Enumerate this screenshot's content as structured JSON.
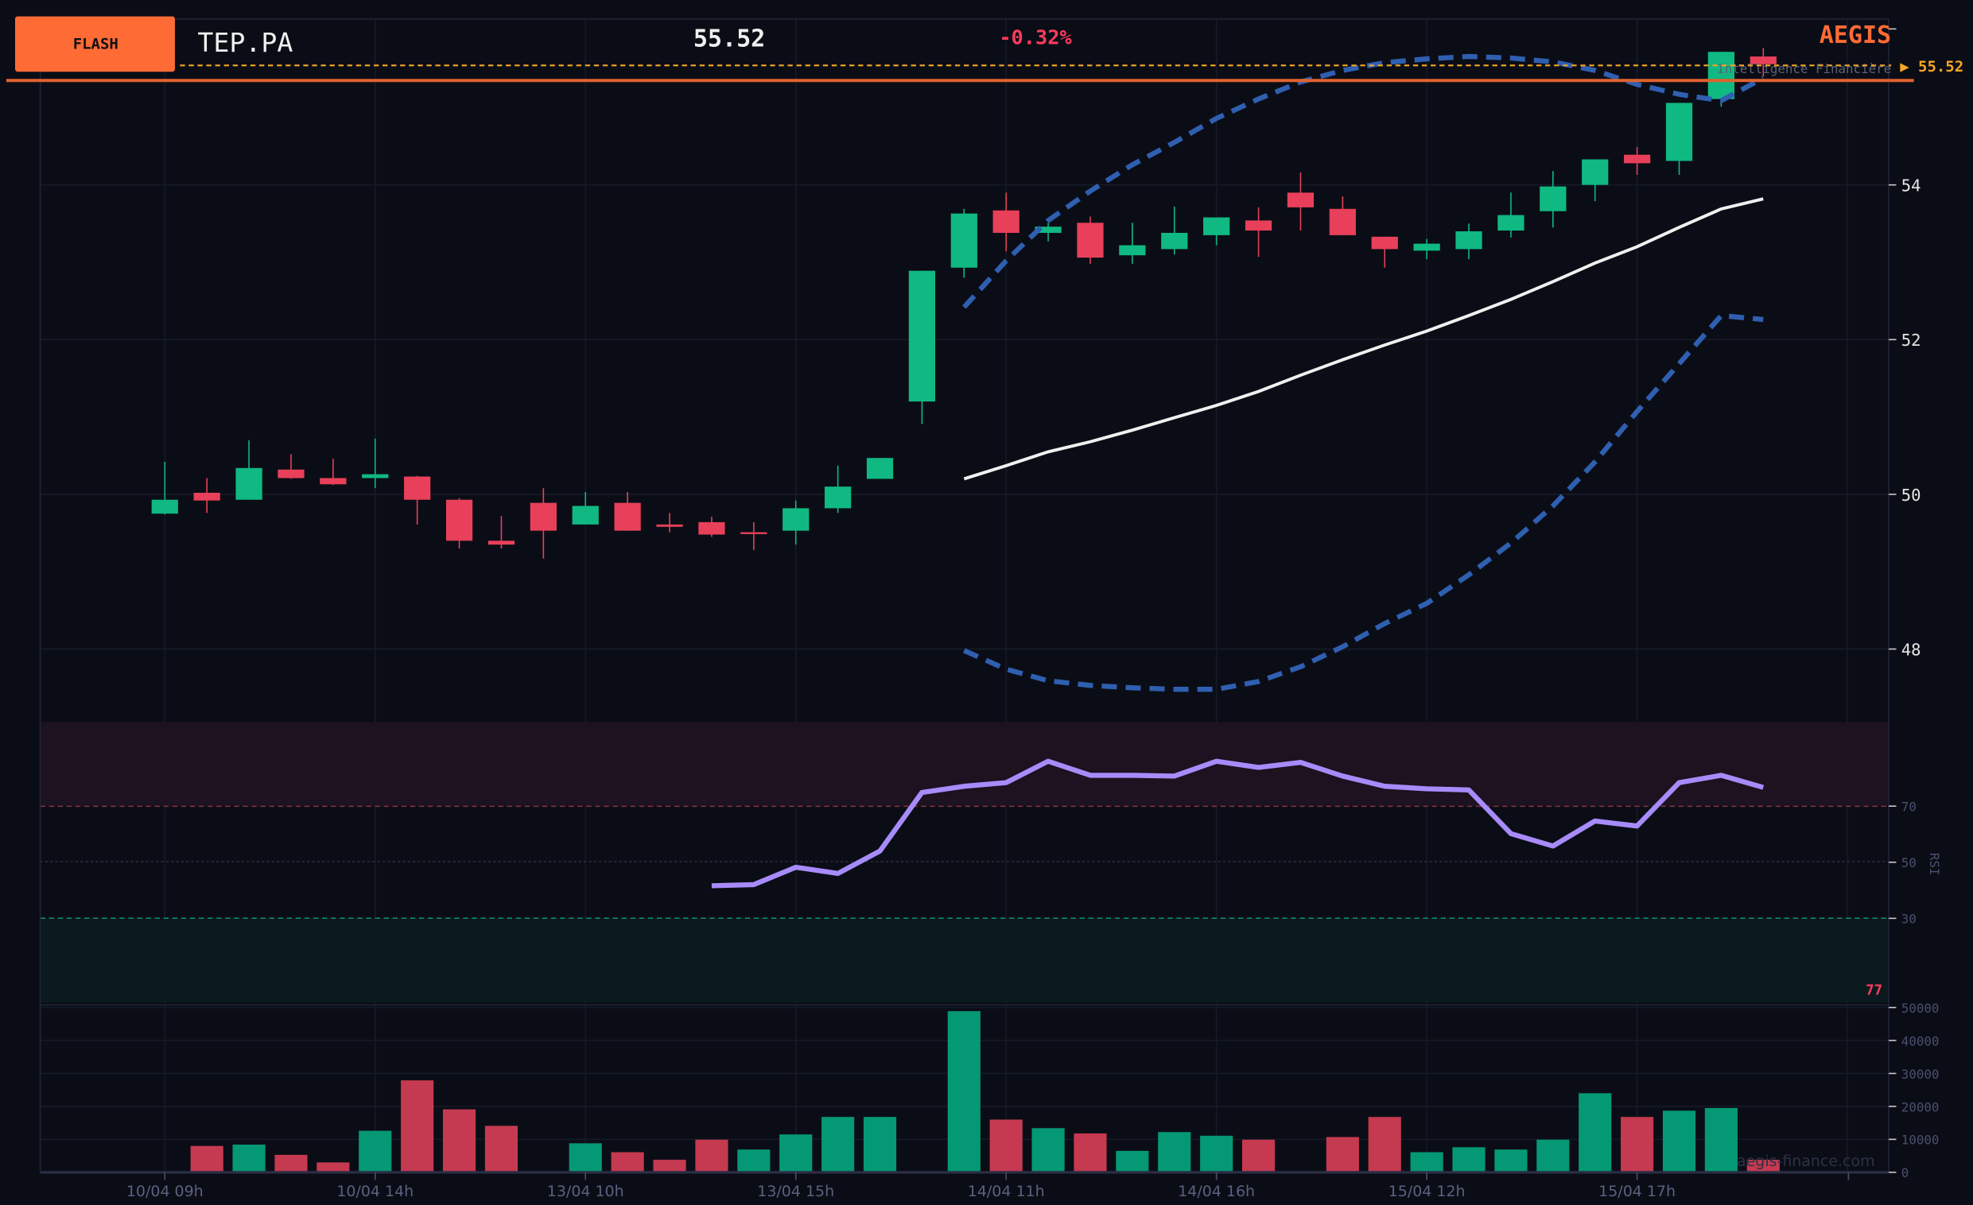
{
  "header": {
    "badge": "FLASH",
    "symbol": "TEP.PA",
    "price": "55.52",
    "change": "-0.32%",
    "brand": "AEGIS",
    "brand_tagline": "Intelligence Financière",
    "last_price_label": "▶ 55.52"
  },
  "watermark": "aegis-finance.com",
  "colors": {
    "up": "#10b981",
    "down": "#e8405a",
    "vol_up": "#059874",
    "vol_down": "#c53a50",
    "accent": "#ff6b35",
    "bollinger": "#2f5fb0",
    "rsi": "#a78bfa",
    "price_line": "#f5a623"
  },
  "chart_data": [
    {
      "type": "candlestick",
      "ylim": [
        47,
        56
      ],
      "y_ticks": [
        "54",
        "52",
        "50",
        "48"
      ],
      "x_tick_labels": [
        "10/04 09h",
        "10/04 14h",
        "13/04 10h",
        "13/04 15h",
        "14/04 11h",
        "14/04 16h",
        "15/04 12h",
        "15/04 17h"
      ],
      "last_price": 55.52,
      "ohlc": [
        [
          49.75,
          50.42,
          49.74,
          49.93
        ],
        [
          50.02,
          50.21,
          49.76,
          49.92
        ],
        [
          49.93,
          50.7,
          49.93,
          50.34
        ],
        [
          50.32,
          50.52,
          50.2,
          50.21
        ],
        [
          50.21,
          50.46,
          50.12,
          50.13
        ],
        [
          50.21,
          50.72,
          50.08,
          50.26
        ],
        [
          50.23,
          50.24,
          49.61,
          49.93
        ],
        [
          49.93,
          49.95,
          49.3,
          49.4
        ],
        [
          49.4,
          49.72,
          49.3,
          49.35
        ],
        [
          49.89,
          50.08,
          49.17,
          49.53
        ],
        [
          49.61,
          50.03,
          49.61,
          49.85
        ],
        [
          49.89,
          50.03,
          49.53,
          49.53
        ],
        [
          49.61,
          49.76,
          49.51,
          49.58
        ],
        [
          49.64,
          49.71,
          49.45,
          49.48
        ],
        [
          49.51,
          49.64,
          49.28,
          49.5
        ],
        [
          49.53,
          49.92,
          49.35,
          49.82
        ],
        [
          49.82,
          50.37,
          49.76,
          50.1
        ],
        [
          50.2,
          50.47,
          50.2,
          50.47
        ],
        [
          51.2,
          52.89,
          50.91,
          52.89
        ],
        [
          52.93,
          53.69,
          52.8,
          53.63
        ],
        [
          53.67,
          53.9,
          53.14,
          53.38
        ],
        [
          53.38,
          53.51,
          53.27,
          53.46
        ],
        [
          53.51,
          53.59,
          52.98,
          53.06
        ],
        [
          53.09,
          53.51,
          52.98,
          53.22
        ],
        [
          53.17,
          53.72,
          53.1,
          53.38
        ],
        [
          53.35,
          53.58,
          53.22,
          53.58
        ],
        [
          53.54,
          53.71,
          53.07,
          53.41
        ],
        [
          53.9,
          54.16,
          53.41,
          53.71
        ],
        [
          53.69,
          53.85,
          53.35,
          53.35
        ],
        [
          53.33,
          53.33,
          52.93,
          53.17
        ],
        [
          53.15,
          53.3,
          53.04,
          53.24
        ],
        [
          53.17,
          53.5,
          53.04,
          53.4
        ],
        [
          53.41,
          53.9,
          53.32,
          53.61
        ],
        [
          53.66,
          54.18,
          53.45,
          53.98
        ],
        [
          54.0,
          54.33,
          53.79,
          54.33
        ],
        [
          54.39,
          54.49,
          54.13,
          54.28
        ],
        [
          54.31,
          55.06,
          54.13,
          55.06
        ],
        [
          55.11,
          55.72,
          55.01,
          55.72
        ],
        [
          55.66,
          55.77,
          55.4,
          55.56
        ]
      ],
      "bollinger_start_index": 19,
      "bollinger_upper": [
        52.42,
        53.02,
        53.54,
        53.92,
        54.26,
        54.55,
        54.86,
        55.11,
        55.33,
        55.48,
        55.58,
        55.63,
        55.66,
        55.64,
        55.59,
        55.48,
        55.3,
        55.17,
        55.09,
        55.38
      ],
      "bollinger_middle": [
        50.2,
        50.37,
        50.55,
        50.68,
        50.83,
        50.99,
        51.15,
        51.33,
        51.54,
        51.74,
        51.93,
        52.11,
        52.31,
        52.52,
        52.75,
        52.99,
        53.2,
        53.45,
        53.69,
        53.82
      ],
      "bollinger_lower": [
        47.98,
        47.74,
        47.59,
        47.53,
        47.5,
        47.48,
        47.48,
        47.58,
        47.77,
        48.03,
        48.33,
        48.59,
        48.96,
        49.37,
        49.85,
        50.42,
        51.07,
        51.69,
        52.31,
        52.26
      ]
    },
    {
      "type": "line",
      "ylabel": "RSI",
      "ylim": [
        0,
        100
      ],
      "y_ticks": [
        "70",
        "50",
        "30"
      ],
      "overbought": 70,
      "oversold": 30,
      "current_label": "77",
      "start_index": 13,
      "values": [
        41.6,
        42.0,
        48.2,
        46.0,
        54.0,
        74.9,
        77.1,
        78.4,
        86.0,
        81.0,
        81.0,
        80.7,
        86.0,
        83.8,
        85.6,
        80.7,
        77.1,
        76.2,
        75.8,
        60.2,
        55.8,
        64.7,
        62.9,
        78.4,
        81.0,
        76.7
      ]
    },
    {
      "type": "bar",
      "ylim": [
        0,
        50000
      ],
      "y_ticks": [
        "50000",
        "40000",
        "30000",
        "20000",
        "10000",
        "0"
      ],
      "values": [
        0,
        8000,
        8400,
        5300,
        3000,
        12600,
        27900,
        19100,
        14100,
        0,
        8800,
        6100,
        3800,
        9900,
        6900,
        11500,
        16800,
        16800,
        0,
        48900,
        16000,
        13400,
        11800,
        6500,
        12200,
        11100,
        9900,
        0,
        10700,
        16800,
        6100,
        7600,
        6900,
        9900,
        24000,
        16800,
        18700,
        19500,
        3800
      ],
      "direction": [
        "",
        "down",
        "up",
        "down",
        "down",
        "up",
        "down",
        "down",
        "down",
        "",
        "up",
        "down",
        "down",
        "down",
        "up",
        "up",
        "up",
        "up",
        "",
        "up",
        "down",
        "up",
        "down",
        "up",
        "up",
        "up",
        "down",
        "",
        "down",
        "down",
        "up",
        "up",
        "up",
        "up",
        "up",
        "down",
        "up",
        "up",
        "down"
      ]
    }
  ]
}
